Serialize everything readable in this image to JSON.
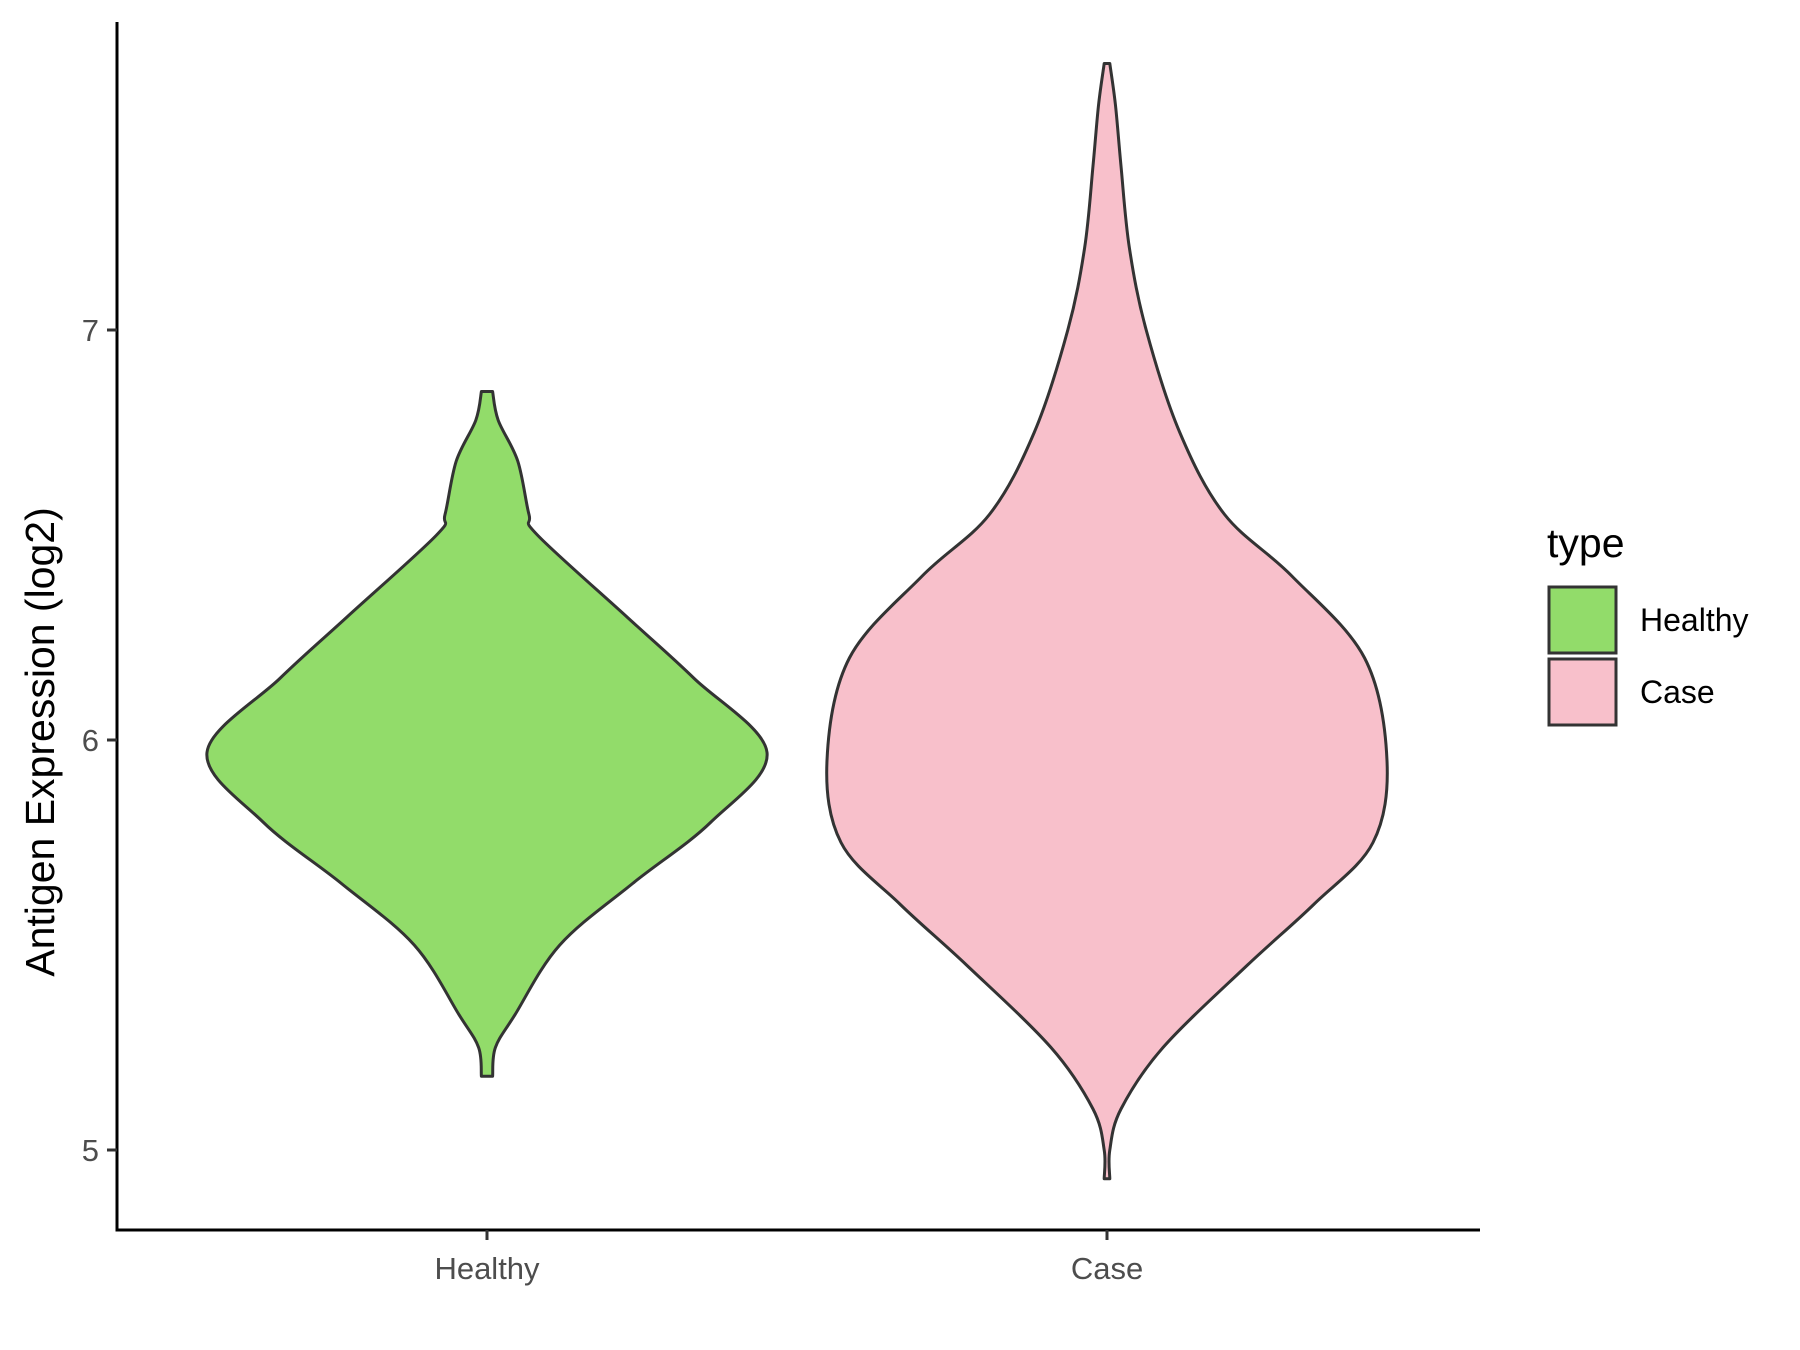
{
  "chart_data": {
    "type": "violin",
    "xlabel": "",
    "ylabel": "Antigen Expression (log2)",
    "ylim": [
      4.8,
      7.75
    ],
    "yticks": [
      5,
      6,
      7
    ],
    "categories": [
      "Healthy",
      "Case"
    ],
    "grid": false,
    "legend": {
      "title": "type",
      "placement": "right",
      "entries": [
        "Healthy",
        "Case"
      ]
    },
    "series": [
      {
        "name": "Healthy",
        "color": "#92dc6a",
        "range": [
          5.18,
          6.85
        ],
        "density_profile": [
          {
            "y": 5.18,
            "w": 0.02
          },
          {
            "y": 5.25,
            "w": 0.03
          },
          {
            "y": 5.33,
            "w": 0.1
          },
          {
            "y": 5.5,
            "w": 0.26
          },
          {
            "y": 5.65,
            "w": 0.52
          },
          {
            "y": 5.8,
            "w": 0.8
          },
          {
            "y": 5.97,
            "w": 1.0
          },
          {
            "y": 6.15,
            "w": 0.74
          },
          {
            "y": 6.3,
            "w": 0.5
          },
          {
            "y": 6.5,
            "w": 0.18
          },
          {
            "y": 6.55,
            "w": 0.15
          },
          {
            "y": 6.68,
            "w": 0.11
          },
          {
            "y": 6.78,
            "w": 0.04
          },
          {
            "y": 6.85,
            "w": 0.02
          }
        ]
      },
      {
        "name": "Case",
        "color": "#f8c0cb",
        "range": [
          4.93,
          7.65
        ],
        "density_profile": [
          {
            "y": 4.93,
            "w": 0.01
          },
          {
            "y": 5.0,
            "w": 0.01
          },
          {
            "y": 5.1,
            "w": 0.05
          },
          {
            "y": 5.25,
            "w": 0.2
          },
          {
            "y": 5.45,
            "w": 0.5
          },
          {
            "y": 5.6,
            "w": 0.74
          },
          {
            "y": 5.75,
            "w": 0.95
          },
          {
            "y": 5.95,
            "w": 1.0
          },
          {
            "y": 6.2,
            "w": 0.92
          },
          {
            "y": 6.4,
            "w": 0.66
          },
          {
            "y": 6.55,
            "w": 0.42
          },
          {
            "y": 6.75,
            "w": 0.26
          },
          {
            "y": 7.0,
            "w": 0.14
          },
          {
            "y": 7.2,
            "w": 0.08
          },
          {
            "y": 7.4,
            "w": 0.05
          },
          {
            "y": 7.55,
            "w": 0.03
          },
          {
            "y": 7.65,
            "w": 0.01
          }
        ]
      }
    ]
  }
}
